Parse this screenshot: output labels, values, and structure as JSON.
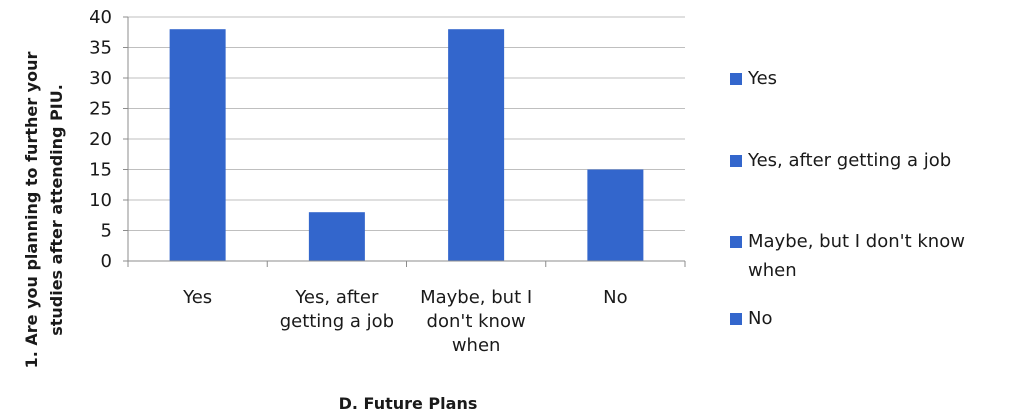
{
  "chart_data": {
    "type": "bar",
    "title": "",
    "xlabel": "D. Future Plans",
    "ylabel_lines": [
      "1. Are you planning to further your",
      "studies after attending PIU."
    ],
    "categories": [
      [
        "Yes"
      ],
      [
        "Yes, after",
        "getting a job"
      ],
      [
        "Maybe, but I",
        "don't know",
        "when"
      ],
      [
        "No"
      ]
    ],
    "series": [
      {
        "values": [
          38,
          8,
          38,
          15
        ]
      }
    ],
    "ylim": [
      0,
      40
    ],
    "yticks": [
      0,
      5,
      10,
      15,
      20,
      25,
      30,
      35,
      40
    ],
    "grid": true,
    "legend_position": "right",
    "legend": [
      [
        "Yes"
      ],
      [
        "Yes, after getting a job"
      ],
      [
        "Maybe, but I don't know",
        "when"
      ],
      [
        "No"
      ]
    ],
    "colors": {
      "bar": "#3366CC",
      "grid": "#BFBFBF",
      "axis": "#8C8C8C"
    }
  }
}
